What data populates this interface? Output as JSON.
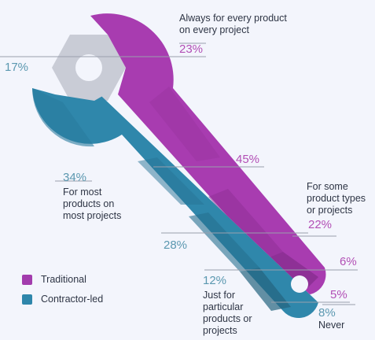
{
  "chart_data": {
    "type": "pie",
    "series": [
      {
        "name": "Traditional",
        "color": "#a23cad",
        "slices": [
          {
            "label": "Always for every product on every project",
            "value": 23
          },
          {
            "label": "For most products on most projects",
            "value": 45
          },
          {
            "label": "For some product types or projects",
            "value": 22
          },
          {
            "label": "Just for particular products or projects",
            "value": 6
          },
          {
            "label": "Never",
            "value": 5
          }
        ]
      },
      {
        "name": "Contractor-led",
        "color": "#2e86ab",
        "slices": [
          {
            "label": "Always for every product on every project",
            "value": 17
          },
          {
            "label": "For most products on most projects",
            "value": 34
          },
          {
            "label": "For some product types or projects",
            "value": 28
          },
          {
            "label": "Just for particular products or projects",
            "value": 12
          },
          {
            "label": "Never",
            "value": 8
          }
        ]
      }
    ],
    "labels": {
      "always": "Always for every product on every project",
      "most": "For most products on most projects",
      "some": "For some product types or projects",
      "particular": "Just for particular products or projects",
      "never": "Never"
    },
    "texts": {
      "trad_always": "23%",
      "trad_most": "45%",
      "trad_some": "22%",
      "trad_particular": "6%",
      "trad_never": "5%",
      "con_always": "17%",
      "con_most": "34%",
      "con_some": "28%",
      "con_particular": "12%",
      "con_never": "8%"
    },
    "legend": [
      {
        "name": "Traditional",
        "color": "#a23cad"
      },
      {
        "name": "Contractor-led",
        "color": "#2e86ab"
      }
    ],
    "colors": {
      "traditional_pct": "#b24fb5",
      "contractor_pct": "#5b98b0",
      "bolt": "#c9ccd6"
    }
  }
}
